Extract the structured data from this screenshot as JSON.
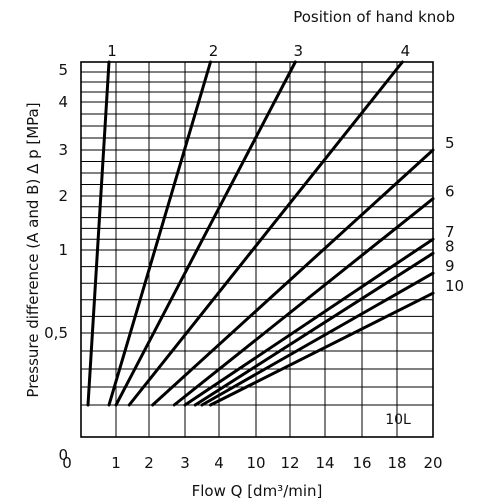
{
  "chart_data": {
    "type": "line",
    "title": "Position of hand knob",
    "xlabel": "Flow Q  [dm³/min]",
    "ylabel": "Pressure difference (A and B)  Δ p [MPa]",
    "x_ticks": [
      "0",
      "1",
      "2",
      "3",
      "4",
      "10",
      "12",
      "14",
      "16",
      "18",
      "20"
    ],
    "y_ticks": [
      {
        "label": "5",
        "value": 5
      },
      {
        "label": "4",
        "value": 4
      },
      {
        "label": "3",
        "value": 3
      },
      {
        "label": "2",
        "value": 2
      },
      {
        "label": "1",
        "value": 1
      },
      {
        "label": "0,5",
        "value": 0.5
      },
      {
        "label": "0",
        "value": 0
      }
    ],
    "y_gridlines": [
      5,
      4.75,
      4.5,
      4.25,
      4,
      3.75,
      3.5,
      3.25,
      3,
      2.75,
      2.5,
      2.25,
      2,
      1.8,
      1.6,
      1.4,
      1.2,
      1,
      0.9,
      0.8,
      0.7,
      0.6,
      0.5,
      0.4,
      0.3,
      0.2,
      0.1
    ],
    "annotation": "10L",
    "series": [
      {
        "name": "1",
        "x": [
          0.2,
          0.8
        ],
        "y": [
          0.1,
          5
        ]
      },
      {
        "name": "2",
        "x": [
          0.8,
          3.75
        ],
        "y": [
          0.1,
          5
        ]
      },
      {
        "name": "3",
        "x": [
          1.0,
          12.3
        ],
        "y": [
          0.1,
          5
        ]
      },
      {
        "name": "4",
        "x": [
          1.4,
          18.3
        ],
        "y": [
          0.1,
          5
        ]
      },
      {
        "name": "5",
        "x": [
          2.1,
          20
        ],
        "y": [
          0.1,
          3.0
        ]
      },
      {
        "name": "6",
        "x": [
          2.7,
          20
        ],
        "y": [
          0.1,
          1.95
        ]
      },
      {
        "name": "7",
        "x": [
          3.0,
          20
        ],
        "y": [
          0.1,
          1.2
        ]
      },
      {
        "name": "8",
        "x": [
          3.3,
          20
        ],
        "y": [
          0.1,
          0.98
        ]
      },
      {
        "name": "9",
        "x": [
          3.5,
          20
        ],
        "y": [
          0.1,
          0.86
        ]
      },
      {
        "name": "10",
        "x": [
          3.75,
          20
        ],
        "y": [
          0.1,
          0.74
        ]
      }
    ]
  }
}
